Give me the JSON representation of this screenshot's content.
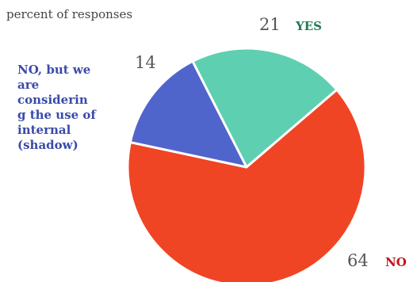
{
  "chart_data": {
    "type": "pie",
    "title": "",
    "subtitle": "percent of responses",
    "start_angle_deg": -27,
    "slices": [
      {
        "label": "YES",
        "value": 21,
        "value_label": "21",
        "color": "#5ecfb1",
        "label_color": "#1e7a55"
      },
      {
        "label": "NO",
        "value": 64,
        "value_label": "64",
        "color": "#f04524",
        "label_color": "#c0161e"
      },
      {
        "label": "NO, but we\nare\nconsiderin\ng the use of\ninternal\n(shadow)",
        "value": 14,
        "value_label": "14",
        "color": "#5065cb",
        "label_color": "#3a4aaa"
      }
    ]
  }
}
